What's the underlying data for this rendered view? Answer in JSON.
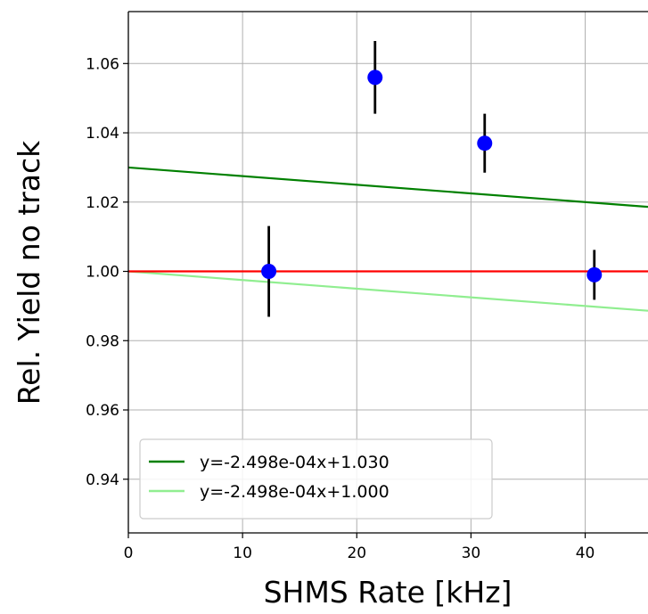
{
  "chart_data": {
    "type": "scatter",
    "xlabel": "SHMS Rate [kHz]",
    "ylabel": "Rel. Yield no track",
    "xlim": [
      0,
      45.5
    ],
    "ylim": [
      0.9245,
      1.075
    ],
    "xticks": [
      0,
      10,
      20,
      30,
      40
    ],
    "xtick_labels": [
      "0",
      "10",
      "20",
      "30",
      "40"
    ],
    "yticks": [
      0.94,
      0.96,
      0.98,
      1.0,
      1.02,
      1.04,
      1.06
    ],
    "ytick_labels": [
      "0.94",
      "0.96",
      "0.98",
      "1.00",
      "1.02",
      "1.04",
      "1.06"
    ],
    "grid": true,
    "legend_position": "lower-left",
    "points": {
      "color": "#0000ff",
      "errorbar_color": "#000000",
      "x": [
        12.3,
        21.6,
        31.2,
        40.8
      ],
      "y": [
        1.0,
        1.056,
        1.037,
        0.999
      ],
      "yerr": [
        0.0131,
        0.0105,
        0.0085,
        0.0072
      ]
    },
    "lines": [
      {
        "name": "y=-2.498e-04x+1.030",
        "slope": -0.0002498,
        "intercept": 1.03,
        "color": "#008000",
        "in_legend": true
      },
      {
        "name": "y=-2.498e-04x+1.000",
        "slope": -0.0002498,
        "intercept": 1.0,
        "color": "#90ee90",
        "in_legend": true
      },
      {
        "name": "",
        "slope": 0,
        "intercept": 1.0,
        "color": "#ff0000",
        "in_legend": false
      }
    ]
  }
}
